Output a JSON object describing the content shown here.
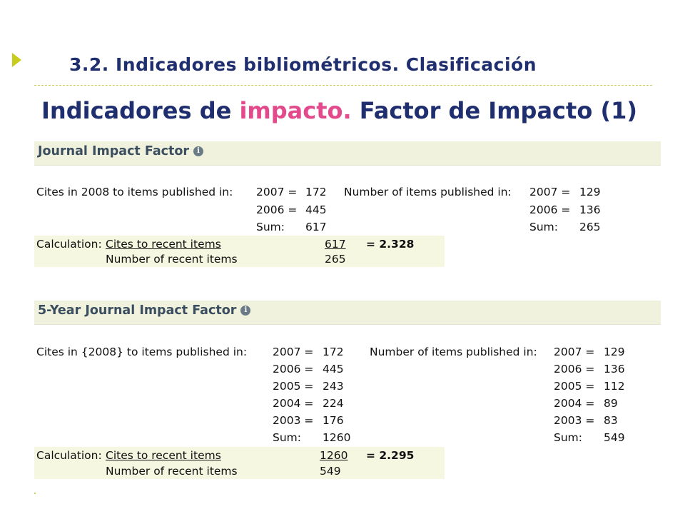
{
  "slide": {
    "section_title": "3.2. Indicadores bibliométricos. Clasificación",
    "title_part1": "Indicadores de ",
    "title_highlight": "impacto.",
    "title_part2": " Factor de Impacto (1)"
  },
  "jif": {
    "heading": "Journal Impact Factor",
    "info_icon": "i",
    "cites_label": "Cites in 2008 to items published in:",
    "cites_rows": [
      {
        "year": "2007 =",
        "value": "172"
      },
      {
        "year": "2006 =",
        "value": "445"
      }
    ],
    "cites_sum_label": "Sum:",
    "cites_sum": "617",
    "items_label": "Number of items published in:",
    "items_rows": [
      {
        "year": "2007 =",
        "value": "129"
      },
      {
        "year": "2006 =",
        "value": "136"
      }
    ],
    "items_sum_label": "Sum:",
    "items_sum": "265",
    "calc_label": "Calculation:",
    "numerator_label": "Cites to recent items",
    "denominator_label": "Number of recent items",
    "numerator": "617",
    "denominator": "265",
    "result": "= 2.328"
  },
  "jif5": {
    "heading": "5-Year Journal Impact Factor",
    "info_icon": "i",
    "cites_label": "Cites in {2008} to items published in:",
    "cites_rows": [
      {
        "year": "2007 =",
        "value": "172"
      },
      {
        "year": "2006 =",
        "value": "445"
      },
      {
        "year": "2005 =",
        "value": "243"
      },
      {
        "year": "2004 =",
        "value": "224"
      },
      {
        "year": "2003 =",
        "value": "176"
      }
    ],
    "cites_sum_label": "Sum:",
    "cites_sum": "1260",
    "items_label": "Number of items published in:",
    "items_rows": [
      {
        "year": "2007 =",
        "value": "129"
      },
      {
        "year": "2006 =",
        "value": "136"
      },
      {
        "year": "2005 =",
        "value": "112"
      },
      {
        "year": "2004 =",
        "value": "89"
      },
      {
        "year": "2003 =",
        "value": "83"
      }
    ],
    "items_sum_label": "Sum:",
    "items_sum": "549",
    "calc_label": "Calculation:",
    "numerator_label": "Cites to recent items",
    "denominator_label": "Number of recent items",
    "numerator": "1260",
    "denominator": "549",
    "result": "= 2.295"
  }
}
